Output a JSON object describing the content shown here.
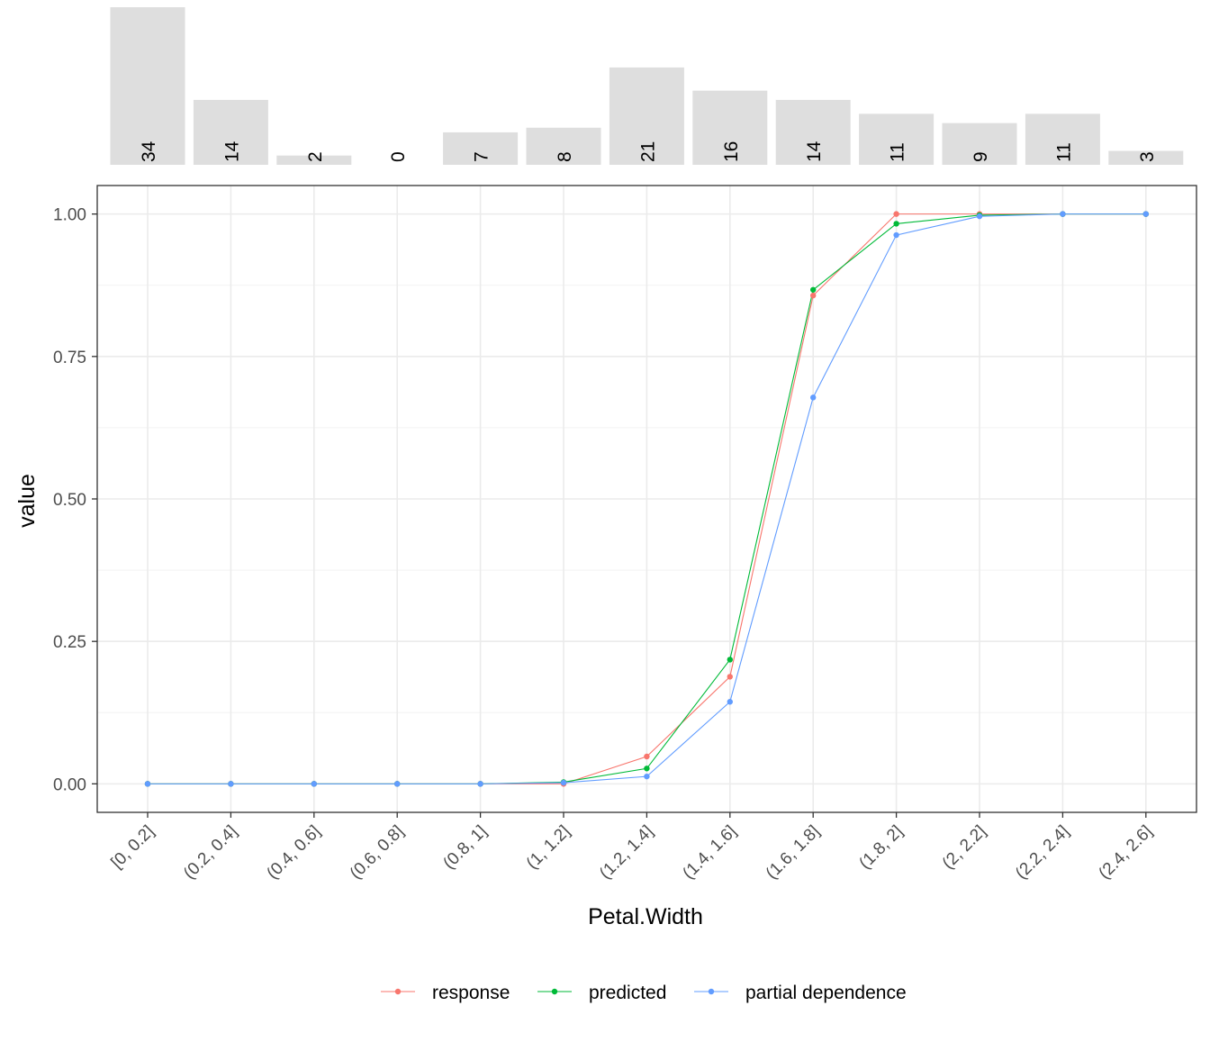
{
  "chart_data": {
    "type": "line",
    "xlabel": "Petal.Width",
    "ylabel": "value",
    "ylim": [
      -0.05,
      1.05
    ],
    "yticks": [
      0.0,
      0.25,
      0.5,
      0.75,
      1.0
    ],
    "ytick_labels": [
      "0.00",
      "0.25",
      "0.50",
      "0.75",
      "1.00"
    ],
    "categories": [
      "[0, 0.2]",
      "(0.2, 0.4]",
      "(0.4, 0.6]",
      "(0.6, 0.8]",
      "(0.8, 1]",
      "(1, 1.2]",
      "(1.2, 1.4]",
      "(1.4, 1.6]",
      "(1.6, 1.8]",
      "(1.8, 2]",
      "(2, 2.2]",
      "(2.2, 2.4]",
      "(2.4, 2.6]"
    ],
    "counts": [
      34,
      14,
      2,
      0,
      7,
      8,
      21,
      16,
      14,
      11,
      9,
      11,
      3
    ],
    "series": [
      {
        "name": "response",
        "color": "#F8766D",
        "values": [
          0,
          0,
          0,
          0,
          0,
          0.0,
          0.048,
          0.188,
          0.857,
          1.0,
          1.0,
          1.0,
          1.0
        ]
      },
      {
        "name": "predicted",
        "color": "#00BA38",
        "values": [
          0,
          0,
          0,
          0,
          0,
          0.003,
          0.027,
          0.218,
          0.867,
          0.983,
          0.998,
          1.0,
          1.0
        ]
      },
      {
        "name": "partial dependence",
        "color": "#619CFF",
        "values": [
          0,
          0,
          0,
          0,
          0,
          0.002,
          0.013,
          0.144,
          0.678,
          0.963,
          0.996,
          1.0,
          1.0
        ]
      }
    ],
    "grid": true,
    "legend_position": "bottom"
  }
}
